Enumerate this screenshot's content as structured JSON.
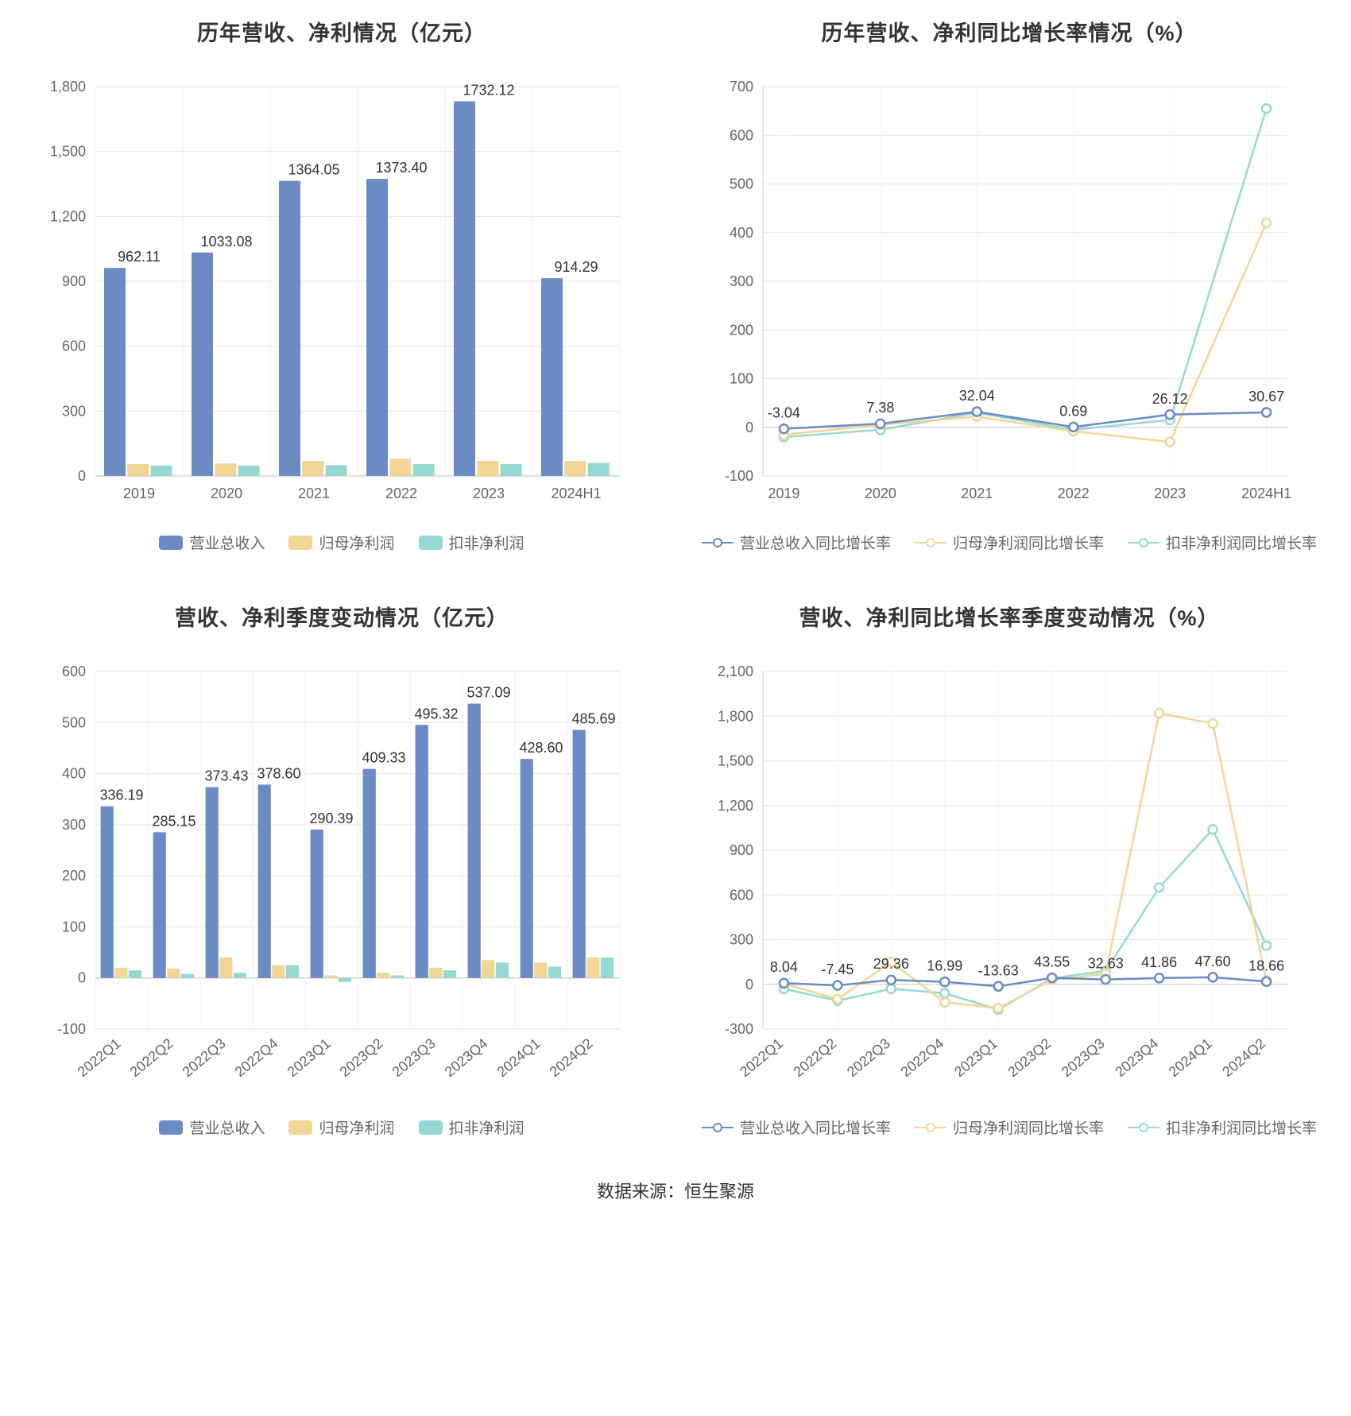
{
  "source_line": "数据来源：恒生聚源",
  "colors": {
    "series_blue": "#6b8bc4",
    "series_yellow": "#f1d696",
    "series_teal": "#95d9d5",
    "axis_text": "#666666",
    "grid": "#e6e6e6",
    "value_text": "#333333",
    "bg": "#ffffff"
  },
  "title_fontsize": 27,
  "axis_fontsize": 18,
  "legend_fontsize": 19,
  "panels": {
    "tl": {
      "title": "历年营收、净利情况（亿元）",
      "type": "bar",
      "categories": [
        "2019",
        "2020",
        "2021",
        "2022",
        "2023",
        "2024H1"
      ],
      "ylim": [
        0,
        1800
      ],
      "ytick_step": 300,
      "series": [
        {
          "name": "营业总收入",
          "color": "#6b8bc4",
          "values": [
            962.11,
            1033.08,
            1364.05,
            1373.4,
            1732.12,
            914.29
          ],
          "show_labels": true
        },
        {
          "name": "归母净利润",
          "color": "#f1d696",
          "values": [
            55,
            58,
            70,
            80,
            70,
            70
          ],
          "show_labels": false
        },
        {
          "name": "扣非净利润",
          "color": "#95d9d5",
          "values": [
            48,
            48,
            50,
            55,
            55,
            60
          ],
          "show_labels": false
        }
      ]
    },
    "tr": {
      "title": "历年营收、净利同比增长率情况（%）",
      "type": "line",
      "categories": [
        "2019",
        "2020",
        "2021",
        "2022",
        "2023",
        "2024H1"
      ],
      "ylim": [
        -100,
        700
      ],
      "ytick_step": 100,
      "series": [
        {
          "name": "营业总收入同比增长率",
          "color": "#6b8bc4",
          "values": [
            -3.04,
            7.38,
            32.04,
            0.69,
            26.12,
            30.67
          ],
          "show_labels": true
        },
        {
          "name": "归母净利润同比增长率",
          "color": "#f1d696",
          "values": [
            -15,
            5,
            22,
            -8,
            -30,
            420
          ],
          "show_labels": false
        },
        {
          "name": "扣非净利润同比增长率",
          "color": "#95d9d5",
          "values": [
            -20,
            -5,
            30,
            -5,
            15,
            655
          ],
          "show_labels": false
        }
      ]
    },
    "bl": {
      "title": "营收、净利季度变动情况（亿元）",
      "type": "bar",
      "categories": [
        "2022Q1",
        "2022Q2",
        "2022Q3",
        "2022Q4",
        "2023Q1",
        "2023Q2",
        "2023Q3",
        "2023Q4",
        "2024Q1",
        "2024Q2"
      ],
      "ylim": [
        -100,
        600
      ],
      "ytick_step": 100,
      "rotate_x": true,
      "series": [
        {
          "name": "营业总收入",
          "color": "#6b8bc4",
          "values": [
            336.19,
            285.15,
            373.43,
            378.6,
            290.39,
            409.33,
            495.32,
            537.09,
            428.6,
            485.69
          ],
          "show_labels": true
        },
        {
          "name": "归母净利润",
          "color": "#f1d696",
          "values": [
            20,
            18,
            40,
            25,
            5,
            10,
            20,
            35,
            30,
            40
          ],
          "show_labels": false
        },
        {
          "name": "扣非净利润",
          "color": "#95d9d5",
          "values": [
            15,
            8,
            10,
            25,
            -8,
            5,
            15,
            30,
            22,
            40
          ],
          "show_labels": false
        }
      ]
    },
    "br": {
      "title": "营收、净利同比增长率季度变动情况（%）",
      "type": "line",
      "categories": [
        "2022Q1",
        "2022Q2",
        "2022Q3",
        "2022Q4",
        "2023Q1",
        "2023Q2",
        "2023Q3",
        "2023Q4",
        "2024Q1",
        "2024Q2"
      ],
      "ylim": [
        -300,
        2100
      ],
      "ytick_step": 300,
      "rotate_x": true,
      "series": [
        {
          "name": "营业总收入同比增长率",
          "color": "#6b8bc4",
          "values": [
            8.04,
            -7.45,
            29.36,
            16.99,
            -13.63,
            43.55,
            32.63,
            41.86,
            47.6,
            18.66
          ],
          "show_labels": true
        },
        {
          "name": "归母净利润同比增长率",
          "color": "#f1d696",
          "values": [
            5,
            -100,
            150,
            -120,
            -160,
            30,
            70,
            1820,
            1750,
            20
          ],
          "show_labels": false
        },
        {
          "name": "扣非净利润同比增长率",
          "color": "#95d9d5",
          "values": [
            -30,
            -110,
            -30,
            -60,
            -170,
            40,
            90,
            650,
            1040,
            260
          ],
          "show_labels": false
        }
      ]
    }
  }
}
